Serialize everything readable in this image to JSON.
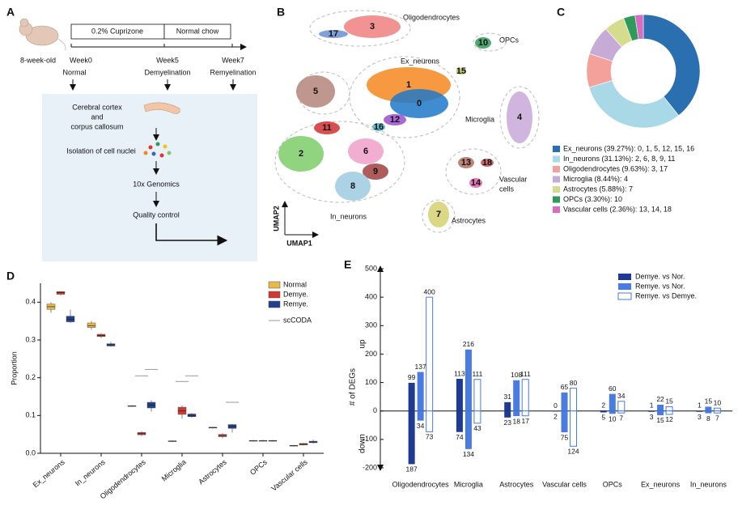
{
  "panel_labels": [
    "A",
    "B",
    "C",
    "D",
    "E"
  ],
  "panel_a": {
    "mouse_age": "8-week-old",
    "treatments": [
      "0.2% Cuprizone",
      "Normal chow"
    ],
    "weeks": [
      "Week0",
      "Week5",
      "Week7"
    ],
    "states": [
      "Normal",
      "Demyelination",
      "Remyelination"
    ],
    "workflow": [
      "Cerebral cortex",
      "and",
      "corpus callosum",
      "Isolation of cell nuclei",
      "10x Genomics",
      "Quality control"
    ]
  },
  "panel_b": {
    "cell_types": [
      "Oligodendrocytes",
      "OPCs",
      "Ex_neurons",
      "Microglia",
      "Vascular",
      "cells",
      "Astrocytes",
      "In_neurons"
    ],
    "clusters": [
      "3",
      "17",
      "10",
      "15",
      "1",
      "0",
      "5",
      "12",
      "16",
      "4",
      "11",
      "2",
      "6",
      "9",
      "8",
      "13",
      "18",
      "14",
      "7"
    ],
    "x_label": "UMAP1",
    "y_label": "UMAP2"
  },
  "chart_data": [
    {
      "type": "pie",
      "donut": true,
      "legend_labels": [
        "Ex_neurons (39.27%): 0, 1, 5, 12, 15, 16",
        "In_neurons (31.13%): 2, 6, 8, 9, 11",
        "Oligodendrocytes (9.63%): 3, 17",
        "Microglia (8.44%): 4",
        "Astrocytes (5.88%): 7",
        "OPCs (3.30%): 10",
        "Vascular cells (2.36%): 13, 14, 18"
      ],
      "values": [
        39.27,
        31.13,
        9.63,
        8.44,
        5.88,
        3.3,
        2.36
      ],
      "colors": [
        "#2a6fb0",
        "#a9d9e6",
        "#f4a19c",
        "#c6abd6",
        "#d6dc8e",
        "#2e9a5c",
        "#d86cc0"
      ]
    },
    {
      "type": "box",
      "y_label": "Proportion",
      "categories": [
        "Ex_neurons",
        "In_neurons",
        "Oligodendrocytes",
        "Microglia",
        "Astrocytes",
        "OPCs",
        "Vascular cells"
      ],
      "ylim": [
        0,
        0.45
      ],
      "yticks": [
        {
          "value": 0,
          "label": "0.0"
        },
        0.1,
        0.2,
        0.3,
        0.4
      ],
      "series": [
        {
          "name": "Normal",
          "color": "#e8b84a",
          "whislo": [
            0.372,
            0.327,
            0.123,
            0.03,
            0.066,
            0.031,
            0.018
          ],
          "q1": [
            0.381,
            0.333,
            0.124,
            0.031,
            0.067,
            0.032,
            0.019
          ],
          "median": [
            0.388,
            0.338,
            0.125,
            0.032,
            0.068,
            0.033,
            0.02
          ],
          "q3": [
            0.395,
            0.345,
            0.126,
            0.033,
            0.069,
            0.034,
            0.021
          ],
          "whishi": [
            0.4,
            0.35,
            0.127,
            0.034,
            0.07,
            0.035,
            0.022
          ]
        },
        {
          "name": "Demye.",
          "color": "#d0392f",
          "whislo": [
            0.418,
            0.305,
            0.046,
            0.092,
            0.04,
            0.031,
            0.021
          ],
          "q1": [
            0.421,
            0.309,
            0.049,
            0.103,
            0.044,
            0.032,
            0.022
          ],
          "median": [
            0.425,
            0.312,
            0.052,
            0.112,
            0.047,
            0.033,
            0.024
          ],
          "q3": [
            0.428,
            0.315,
            0.055,
            0.122,
            0.05,
            0.034,
            0.026
          ],
          "whishi": [
            0.43,
            0.318,
            0.058,
            0.127,
            0.053,
            0.035,
            0.027
          ]
        },
        {
          "name": "Remye.",
          "color": "#23408e",
          "whislo": [
            0.345,
            0.282,
            0.11,
            0.094,
            0.055,
            0.031,
            0.026
          ],
          "q1": [
            0.348,
            0.284,
            0.12,
            0.097,
            0.066,
            0.032,
            0.028
          ],
          "median": [
            0.355,
            0.287,
            0.128,
            0.1,
            0.072,
            0.033,
            0.03
          ],
          "q3": [
            0.363,
            0.29,
            0.135,
            0.104,
            0.076,
            0.034,
            0.032
          ],
          "whishi": [
            0.38,
            0.295,
            0.14,
            0.107,
            0.078,
            0.035,
            0.036
          ]
        }
      ],
      "sccoda": {
        "name": "scCODA",
        "color": "#999999",
        "values": [
          [
            null,
            null
          ],
          [
            null,
            null
          ],
          [
            0.205,
            0.222
          ],
          [
            0.19,
            0.205
          ],
          [
            null,
            0.135
          ],
          [
            null,
            null
          ],
          [
            null,
            null
          ]
        ]
      }
    },
    {
      "type": "bar",
      "y_label": "# of DEGs",
      "annotations": [
        "up",
        "down"
      ],
      "categories": [
        "Oligodendrocytes",
        "Microglia",
        "Astrocytes",
        "Vascular cells",
        "OPCs",
        "Ex_neurons",
        "In_neurons"
      ],
      "ylim": [
        -200,
        500
      ],
      "yticks": [
        -200,
        -100,
        0,
        100,
        200,
        300,
        400,
        500
      ],
      "series": [
        {
          "name": "Demye. vs Nor.",
          "color": "#1f3a93",
          "filled": true,
          "values": [
            99,
            113,
            31,
            0,
            2,
            1,
            1
          ],
          "down_values": [
            -187,
            -74,
            -23,
            -2,
            -5,
            -3,
            -3
          ],
          "down_value_labels": [
            "187",
            "74",
            "23",
            "2",
            "5",
            "3",
            "3"
          ]
        },
        {
          "name": "Remye. vs Nor.",
          "color": "#4a7be0",
          "filled": true,
          "values": [
            137,
            216,
            108,
            65,
            60,
            22,
            15
          ],
          "down_values": [
            -34,
            -134,
            -18,
            -75,
            -10,
            -15,
            -8
          ],
          "down_value_labels": [
            "34",
            "134",
            "18",
            "75",
            "10",
            "15",
            "8"
          ]
        },
        {
          "name": "Remye. vs Demye.",
          "color": "#4a7be0",
          "filled": false,
          "values": [
            400,
            111,
            111,
            80,
            34,
            15,
            10
          ],
          "down_values": [
            -73,
            -43,
            -17,
            -124,
            -7,
            -12,
            -7
          ],
          "down_value_labels": [
            "73",
            "43",
            "17",
            "124",
            "7",
            "12",
            "7"
          ]
        }
      ]
    }
  ]
}
